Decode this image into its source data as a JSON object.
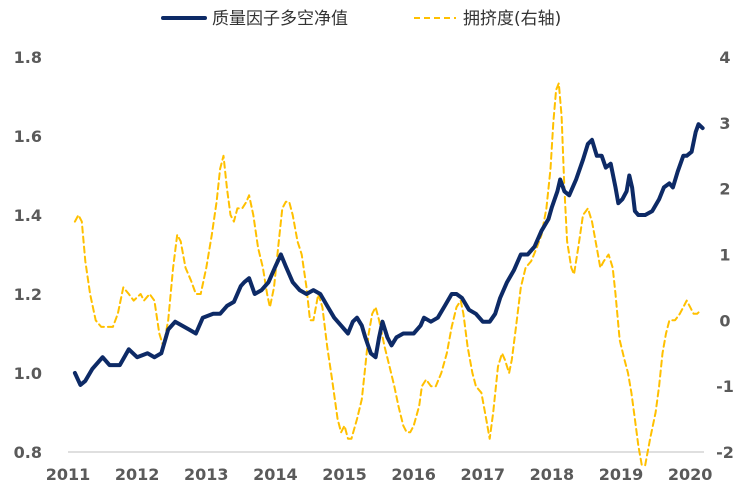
{
  "chart_data": {
    "type": "line",
    "title": "",
    "xlabel": "",
    "ylabel": "",
    "xlim": [
      2011,
      2020.2
    ],
    "ylim_left": [
      0.8,
      1.8
    ],
    "ylim_right": [
      -2,
      4
    ],
    "x_ticks": [
      "2011",
      "2012",
      "2013",
      "2014",
      "2015",
      "2016",
      "2017",
      "2018",
      "2019",
      "2020"
    ],
    "y_left_ticks": [
      "0.8",
      "1.0",
      "1.2",
      "1.4",
      "1.6",
      "1.8"
    ],
    "y_right_ticks": [
      "-2",
      "-1",
      "0",
      "1",
      "2",
      "3",
      "4"
    ],
    "legend_position": "top-center",
    "series": [
      {
        "name": "质量因子多空净值",
        "axis": "left",
        "style": "solid",
        "color": "#0d2a66",
        "points": [
          [
            2011.1,
            1.0
          ],
          [
            2011.18,
            0.97
          ],
          [
            2011.25,
            0.98
          ],
          [
            2011.35,
            1.01
          ],
          [
            2011.5,
            1.04
          ],
          [
            2011.6,
            1.02
          ],
          [
            2011.75,
            1.02
          ],
          [
            2011.88,
            1.06
          ],
          [
            2012.0,
            1.04
          ],
          [
            2012.15,
            1.05
          ],
          [
            2012.25,
            1.04
          ],
          [
            2012.35,
            1.05
          ],
          [
            2012.45,
            1.11
          ],
          [
            2012.55,
            1.13
          ],
          [
            2012.65,
            1.12
          ],
          [
            2012.75,
            1.11
          ],
          [
            2012.85,
            1.1
          ],
          [
            2012.95,
            1.14
          ],
          [
            2013.1,
            1.15
          ],
          [
            2013.2,
            1.15
          ],
          [
            2013.3,
            1.17
          ],
          [
            2013.4,
            1.18
          ],
          [
            2013.5,
            1.22
          ],
          [
            2013.55,
            1.23
          ],
          [
            2013.62,
            1.24
          ],
          [
            2013.7,
            1.2
          ],
          [
            2013.8,
            1.21
          ],
          [
            2013.9,
            1.23
          ],
          [
            2014.0,
            1.27
          ],
          [
            2014.08,
            1.3
          ],
          [
            2014.15,
            1.27
          ],
          [
            2014.25,
            1.23
          ],
          [
            2014.35,
            1.21
          ],
          [
            2014.45,
            1.2
          ],
          [
            2014.55,
            1.21
          ],
          [
            2014.65,
            1.2
          ],
          [
            2014.75,
            1.17
          ],
          [
            2014.85,
            1.14
          ],
          [
            2014.95,
            1.12
          ],
          [
            2015.0,
            1.11
          ],
          [
            2015.05,
            1.1
          ],
          [
            2015.12,
            1.13
          ],
          [
            2015.18,
            1.14
          ],
          [
            2015.25,
            1.12
          ],
          [
            2015.3,
            1.09
          ],
          [
            2015.38,
            1.05
          ],
          [
            2015.45,
            1.04
          ],
          [
            2015.5,
            1.09
          ],
          [
            2015.55,
            1.13
          ],
          [
            2015.62,
            1.09
          ],
          [
            2015.68,
            1.07
          ],
          [
            2015.75,
            1.09
          ],
          [
            2015.85,
            1.1
          ],
          [
            2015.95,
            1.1
          ],
          [
            2016.0,
            1.1
          ],
          [
            2016.1,
            1.12
          ],
          [
            2016.15,
            1.14
          ],
          [
            2016.25,
            1.13
          ],
          [
            2016.35,
            1.14
          ],
          [
            2016.45,
            1.17
          ],
          [
            2016.55,
            1.2
          ],
          [
            2016.62,
            1.2
          ],
          [
            2016.7,
            1.19
          ],
          [
            2016.8,
            1.16
          ],
          [
            2016.9,
            1.15
          ],
          [
            2016.95,
            1.14
          ],
          [
            2017.0,
            1.13
          ],
          [
            2017.1,
            1.13
          ],
          [
            2017.18,
            1.15
          ],
          [
            2017.25,
            1.19
          ],
          [
            2017.35,
            1.23
          ],
          [
            2017.45,
            1.26
          ],
          [
            2017.55,
            1.3
          ],
          [
            2017.65,
            1.3
          ],
          [
            2017.75,
            1.32
          ],
          [
            2017.85,
            1.36
          ],
          [
            2017.95,
            1.39
          ],
          [
            2018.0,
            1.42
          ],
          [
            2018.08,
            1.46
          ],
          [
            2018.12,
            1.49
          ],
          [
            2018.18,
            1.46
          ],
          [
            2018.25,
            1.45
          ],
          [
            2018.35,
            1.49
          ],
          [
            2018.45,
            1.54
          ],
          [
            2018.52,
            1.58
          ],
          [
            2018.58,
            1.59
          ],
          [
            2018.65,
            1.55
          ],
          [
            2018.72,
            1.55
          ],
          [
            2018.78,
            1.52
          ],
          [
            2018.85,
            1.53
          ],
          [
            2018.92,
            1.47
          ],
          [
            2018.96,
            1.43
          ],
          [
            2019.02,
            1.44
          ],
          [
            2019.08,
            1.46
          ],
          [
            2019.12,
            1.5
          ],
          [
            2019.16,
            1.47
          ],
          [
            2019.2,
            1.41
          ],
          [
            2019.25,
            1.4
          ],
          [
            2019.35,
            1.4
          ],
          [
            2019.45,
            1.41
          ],
          [
            2019.55,
            1.44
          ],
          [
            2019.62,
            1.47
          ],
          [
            2019.7,
            1.48
          ],
          [
            2019.75,
            1.47
          ],
          [
            2019.82,
            1.51
          ],
          [
            2019.9,
            1.55
          ],
          [
            2019.95,
            1.55
          ],
          [
            2020.02,
            1.56
          ],
          [
            2020.08,
            1.61
          ],
          [
            2020.12,
            1.63
          ],
          [
            2020.18,
            1.62
          ]
        ]
      },
      {
        "name": "拥挤度(右轴)",
        "axis": "right",
        "style": "dashed",
        "color": "#ffc000",
        "points": [
          [
            2011.1,
            1.5
          ],
          [
            2011.15,
            1.6
          ],
          [
            2011.2,
            1.5
          ],
          [
            2011.25,
            0.9
          ],
          [
            2011.32,
            0.4
          ],
          [
            2011.4,
            0.0
          ],
          [
            2011.48,
            -0.1
          ],
          [
            2011.55,
            -0.1
          ],
          [
            2011.65,
            -0.1
          ],
          [
            2011.72,
            0.1
          ],
          [
            2011.8,
            0.5
          ],
          [
            2011.88,
            0.4
          ],
          [
            2011.95,
            0.3
          ],
          [
            2012.05,
            0.4
          ],
          [
            2012.1,
            0.3
          ],
          [
            2012.18,
            0.4
          ],
          [
            2012.25,
            0.3
          ],
          [
            2012.32,
            -0.2
          ],
          [
            2012.38,
            -0.4
          ],
          [
            2012.45,
            0.0
          ],
          [
            2012.52,
            0.8
          ],
          [
            2012.58,
            1.3
          ],
          [
            2012.63,
            1.2
          ],
          [
            2012.7,
            0.8
          ],
          [
            2012.78,
            0.6
          ],
          [
            2012.85,
            0.4
          ],
          [
            2012.92,
            0.4
          ],
          [
            2013.0,
            0.8
          ],
          [
            2013.08,
            1.3
          ],
          [
            2013.15,
            1.8
          ],
          [
            2013.2,
            2.3
          ],
          [
            2013.25,
            2.5
          ],
          [
            2013.3,
            2.0
          ],
          [
            2013.35,
            1.6
          ],
          [
            2013.4,
            1.5
          ],
          [
            2013.45,
            1.7
          ],
          [
            2013.52,
            1.7
          ],
          [
            2013.58,
            1.8
          ],
          [
            2013.62,
            1.9
          ],
          [
            2013.68,
            1.6
          ],
          [
            2013.75,
            1.1
          ],
          [
            2013.82,
            0.8
          ],
          [
            2013.88,
            0.4
          ],
          [
            2013.92,
            0.2
          ],
          [
            2013.98,
            0.5
          ],
          [
            2014.05,
            1.2
          ],
          [
            2014.1,
            1.7
          ],
          [
            2014.15,
            1.8
          ],
          [
            2014.2,
            1.8
          ],
          [
            2014.25,
            1.6
          ],
          [
            2014.32,
            1.2
          ],
          [
            2014.38,
            1.0
          ],
          [
            2014.45,
            0.5
          ],
          [
            2014.5,
            0.0
          ],
          [
            2014.55,
            0.0
          ],
          [
            2014.62,
            0.4
          ],
          [
            2014.68,
            0.2
          ],
          [
            2014.75,
            -0.4
          ],
          [
            2014.82,
            -0.9
          ],
          [
            2014.9,
            -1.5
          ],
          [
            2014.95,
            -1.7
          ],
          [
            2015.0,
            -1.6
          ],
          [
            2015.05,
            -1.8
          ],
          [
            2015.1,
            -1.8
          ],
          [
            2015.18,
            -1.5
          ],
          [
            2015.25,
            -1.2
          ],
          [
            2015.3,
            -0.7
          ],
          [
            2015.35,
            -0.2
          ],
          [
            2015.4,
            0.1
          ],
          [
            2015.45,
            0.2
          ],
          [
            2015.5,
            0.0
          ],
          [
            2015.58,
            -0.4
          ],
          [
            2015.65,
            -0.7
          ],
          [
            2015.72,
            -1.0
          ],
          [
            2015.78,
            -1.3
          ],
          [
            2015.85,
            -1.6
          ],
          [
            2015.9,
            -1.7
          ],
          [
            2015.95,
            -1.7
          ],
          [
            2016.0,
            -1.6
          ],
          [
            2016.08,
            -1.3
          ],
          [
            2016.12,
            -1.0
          ],
          [
            2016.18,
            -0.9
          ],
          [
            2016.25,
            -1.0
          ],
          [
            2016.32,
            -1.0
          ],
          [
            2016.4,
            -0.8
          ],
          [
            2016.48,
            -0.5
          ],
          [
            2016.55,
            -0.1
          ],
          [
            2016.62,
            0.2
          ],
          [
            2016.68,
            0.3
          ],
          [
            2016.72,
            0.1
          ],
          [
            2016.78,
            -0.4
          ],
          [
            2016.85,
            -0.8
          ],
          [
            2016.9,
            -1.0
          ],
          [
            2016.98,
            -1.1
          ],
          [
            2017.05,
            -1.5
          ],
          [
            2017.1,
            -1.8
          ],
          [
            2017.15,
            -1.4
          ],
          [
            2017.22,
            -0.7
          ],
          [
            2017.28,
            -0.5
          ],
          [
            2017.32,
            -0.6
          ],
          [
            2017.38,
            -0.8
          ],
          [
            2017.42,
            -0.6
          ],
          [
            2017.48,
            -0.1
          ],
          [
            2017.55,
            0.5
          ],
          [
            2017.62,
            0.8
          ],
          [
            2017.7,
            0.9
          ],
          [
            2017.78,
            1.1
          ],
          [
            2017.85,
            1.3
          ],
          [
            2017.92,
            1.7
          ],
          [
            2017.98,
            2.3
          ],
          [
            2018.02,
            3.0
          ],
          [
            2018.06,
            3.5
          ],
          [
            2018.1,
            3.6
          ],
          [
            2018.14,
            3.1
          ],
          [
            2018.18,
            2.0
          ],
          [
            2018.22,
            1.2
          ],
          [
            2018.28,
            0.8
          ],
          [
            2018.32,
            0.7
          ],
          [
            2018.38,
            1.1
          ],
          [
            2018.45,
            1.6
          ],
          [
            2018.52,
            1.7
          ],
          [
            2018.58,
            1.5
          ],
          [
            2018.65,
            1.1
          ],
          [
            2018.7,
            0.8
          ],
          [
            2018.75,
            0.9
          ],
          [
            2018.82,
            1.0
          ],
          [
            2018.88,
            0.8
          ],
          [
            2018.92,
            0.4
          ],
          [
            2018.98,
            -0.3
          ],
          [
            2019.05,
            -0.6
          ],
          [
            2019.1,
            -0.8
          ],
          [
            2019.15,
            -1.1
          ],
          [
            2019.2,
            -1.5
          ],
          [
            2019.25,
            -1.9
          ],
          [
            2019.3,
            -2.2
          ],
          [
            2019.35,
            -2.2
          ],
          [
            2019.42,
            -1.8
          ],
          [
            2019.5,
            -1.4
          ],
          [
            2019.55,
            -1.0
          ],
          [
            2019.6,
            -0.5
          ],
          [
            2019.65,
            -0.2
          ],
          [
            2019.7,
            0.0
          ],
          [
            2019.78,
            0.0
          ],
          [
            2019.85,
            0.1
          ],
          [
            2019.9,
            0.2
          ],
          [
            2019.95,
            0.3
          ],
          [
            2020.0,
            0.2
          ],
          [
            2020.05,
            0.1
          ],
          [
            2020.1,
            0.1
          ],
          [
            2020.15,
            0.15
          ]
        ]
      }
    ]
  }
}
